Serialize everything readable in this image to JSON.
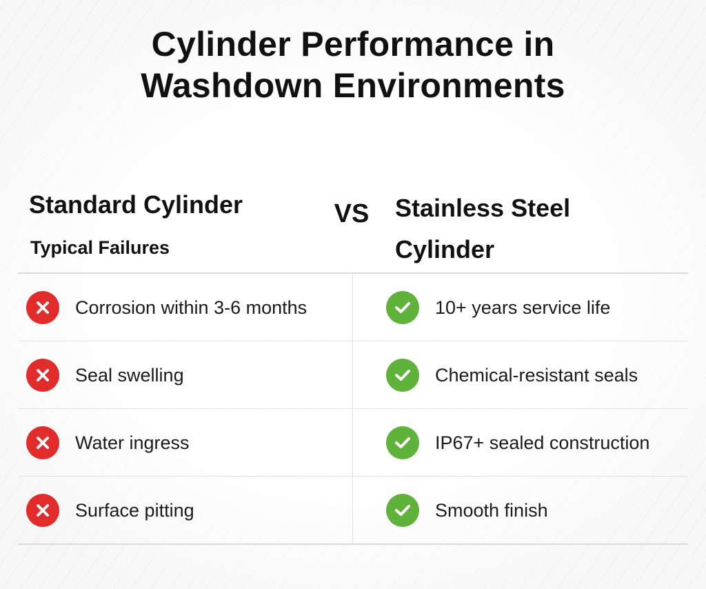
{
  "title": {
    "line1": "Cylinder Performance in",
    "line2": "Washdown Environments"
  },
  "left_column": {
    "heading": "Standard Cylinder",
    "subheading": "Typical Failures",
    "icon": "x-circle-icon",
    "icon_color": "#e22b2b",
    "items": [
      "Corrosion within 3-6 months",
      "Seal swelling",
      "Water ingress",
      "Surface pitting"
    ]
  },
  "vs_label": "VS",
  "right_column": {
    "heading_line1": "Stainless Steel",
    "heading_line2": "Cylinder",
    "icon": "check-circle-icon",
    "icon_color": "#5fb23a",
    "items": [
      "10+ years service life",
      "Chemical-resistant seals",
      "IP67+ sealed construction",
      "Smooth finish"
    ]
  }
}
